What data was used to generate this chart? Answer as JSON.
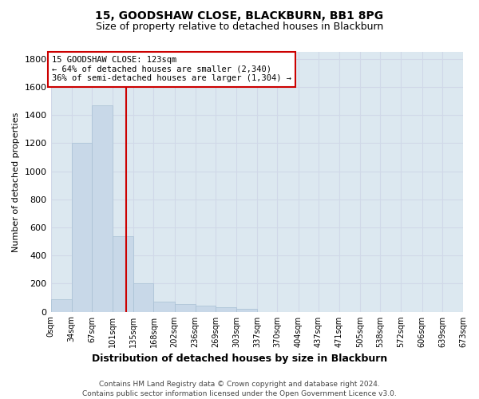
{
  "title1": "15, GOODSHAW CLOSE, BLACKBURN, BB1 8PG",
  "title2": "Size of property relative to detached houses in Blackburn",
  "xlabel": "Distribution of detached houses by size in Blackburn",
  "ylabel": "Number of detached properties",
  "bar_color": "#c8d8e8",
  "bar_edge_color": "#a8c0d4",
  "bin_edges": [
    0,
    34,
    67,
    101,
    135,
    168,
    202,
    236,
    269,
    303,
    337,
    370,
    404,
    437,
    471,
    505,
    538,
    572,
    606,
    639,
    673
  ],
  "bar_heights": [
    90,
    1200,
    1470,
    540,
    200,
    70,
    55,
    45,
    30,
    20,
    0,
    0,
    0,
    0,
    0,
    0,
    0,
    0,
    0,
    0
  ],
  "property_size": 123,
  "vline_color": "#cc0000",
  "annotation_text": "15 GOODSHAW CLOSE: 123sqm\n← 64% of detached houses are smaller (2,340)\n36% of semi-detached houses are larger (1,304) →",
  "annotation_box_color": "#ffffff",
  "annotation_box_edge": "#cc0000",
  "footnote1": "Contains HM Land Registry data © Crown copyright and database right 2024.",
  "footnote2": "Contains public sector information licensed under the Open Government Licence v3.0.",
  "ylim": [
    0,
    1850
  ],
  "yticks": [
    0,
    200,
    400,
    600,
    800,
    1000,
    1200,
    1400,
    1600,
    1800
  ],
  "grid_color": "#d0d8e8",
  "bg_color": "#dce8f0",
  "fig_width": 6.0,
  "fig_height": 5.0,
  "dpi": 100
}
